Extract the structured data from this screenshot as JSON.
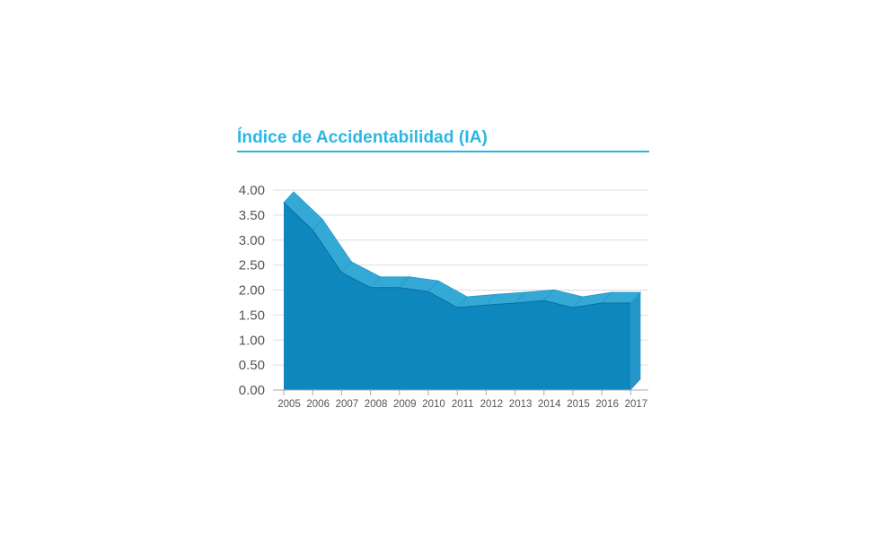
{
  "chart_data": {
    "type": "area",
    "title": "Índice de Accidentabilidad (IA)",
    "xlabel": "",
    "ylabel": "",
    "x": [
      "2005",
      "2006",
      "2007",
      "2008",
      "2009",
      "2010",
      "2011",
      "2012",
      "2013",
      "2014",
      "2015",
      "2016",
      "2017"
    ],
    "values": [
      3.75,
      3.2,
      2.35,
      2.05,
      2.05,
      1.97,
      1.65,
      1.7,
      1.74,
      1.79,
      1.65,
      1.74,
      1.74
    ],
    "yticks": [
      "0.00",
      "0.50",
      "1.00",
      "1.50",
      "2.00",
      "2.50",
      "3.00",
      "3.50",
      "4.00"
    ],
    "ylim": [
      0,
      4
    ],
    "grid": true,
    "style": "3d-area",
    "colors": {
      "front": "#0e87bf",
      "top": "#35a9d6",
      "side": "#2596c9",
      "title": "#29b6e4",
      "grid": "#dddddd",
      "axis": "#aaaaaa",
      "text": "#555555"
    }
  }
}
